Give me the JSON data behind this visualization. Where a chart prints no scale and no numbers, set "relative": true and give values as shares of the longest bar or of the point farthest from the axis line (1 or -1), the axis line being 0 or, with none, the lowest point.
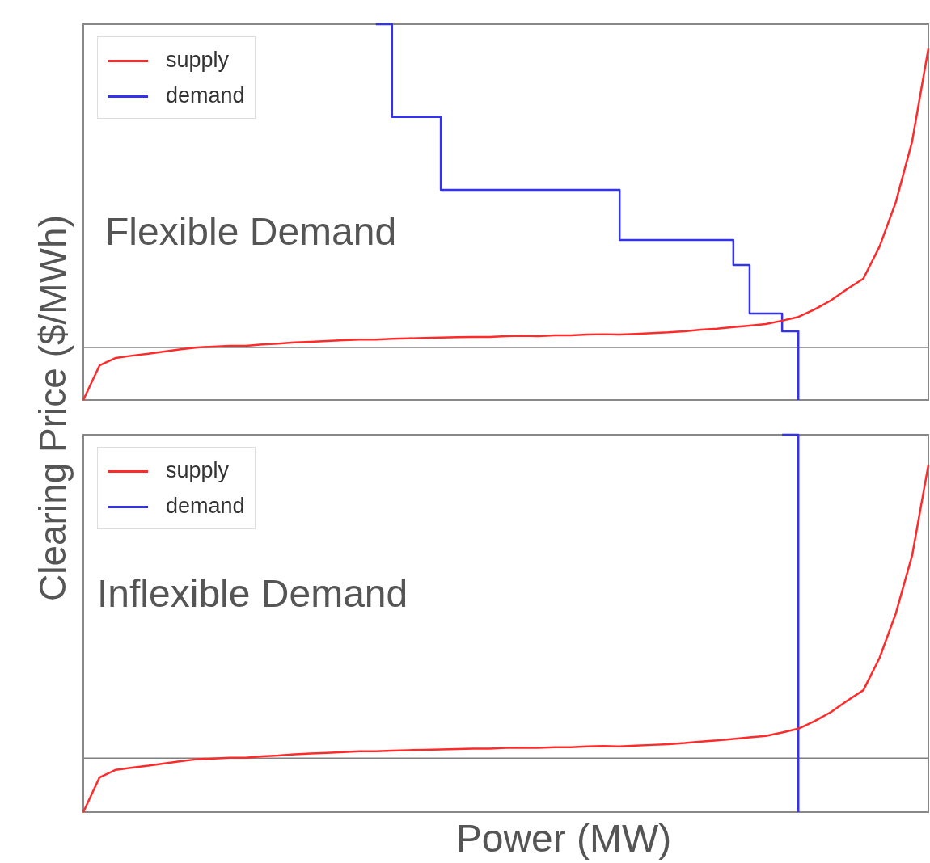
{
  "chart_data": [
    {
      "type": "line",
      "relative": true,
      "annotations": [
        "Flexible Demand"
      ],
      "ylabel": "Clearing Price ($/MWh)",
      "legend": "top left",
      "categories": [
        null,
        null,
        null,
        null,
        null,
        null,
        null,
        null,
        null,
        null,
        null,
        null,
        null,
        null,
        null,
        null,
        null,
        null,
        null,
        null,
        null,
        null,
        null,
        null,
        null,
        null,
        null,
        null,
        null,
        null,
        null,
        null,
        null,
        null,
        null,
        null,
        null,
        null,
        null,
        null,
        null,
        null,
        null,
        null,
        null,
        null,
        null,
        null,
        null,
        null,
        null,
        null,
        null
      ],
      "series": [
        {
          "name": "supply",
          "color": "#ff2a2a",
          "type": "line",
          "values": [
            0,
            0.092,
            0.112,
            0.118,
            0.123,
            0.129,
            0.135,
            0.14,
            0.142,
            0.144,
            0.144,
            0.148,
            0.15,
            0.153,
            0.155,
            0.157,
            0.159,
            0.161,
            0.161,
            0.163,
            0.164,
            0.165,
            0.166,
            0.167,
            0.168,
            0.168,
            0.17,
            0.171,
            0.17,
            0.172,
            0.172,
            0.174,
            0.175,
            0.174,
            0.176,
            0.178,
            0.18,
            0.183,
            0.187,
            0.19,
            0.194,
            0.198,
            0.202,
            0.211,
            0.221,
            0.241,
            0.265,
            0.295,
            0.323,
            0.409,
            0.527,
            0.688,
            0.935
          ]
        },
        {
          "name": "demand",
          "color": "#3333ee",
          "type": "step",
          "values": [
            null,
            null,
            null,
            null,
            null,
            null,
            null,
            null,
            null,
            null,
            null,
            null,
            null,
            null,
            null,
            null,
            null,
            null,
            1,
            0.753,
            0.753,
            0.753,
            0.559,
            0.559,
            0.559,
            0.559,
            0.559,
            0.559,
            0.559,
            0.559,
            0.559,
            0.559,
            0.559,
            0.426,
            0.426,
            0.426,
            0.426,
            0.426,
            0.426,
            0.426,
            0.359,
            0.23,
            0.23,
            0.183,
            0,
            null,
            null,
            null,
            null,
            null,
            null,
            null,
            null
          ]
        }
      ],
      "ref_lines": [
        {
          "axis": "y",
          "value": 0.14,
          "color": "#808080"
        }
      ]
    },
    {
      "type": "line",
      "relative": true,
      "annotations": [
        "Inflexible Demand"
      ],
      "xlabel": "Power (MW)",
      "legend": "top left",
      "categories": [
        null,
        null,
        null,
        null,
        null,
        null,
        null,
        null,
        null,
        null,
        null,
        null,
        null,
        null,
        null,
        null,
        null,
        null,
        null,
        null,
        null,
        null,
        null,
        null,
        null,
        null,
        null,
        null,
        null,
        null,
        null,
        null,
        null,
        null,
        null,
        null,
        null,
        null,
        null,
        null,
        null,
        null,
        null,
        null,
        null,
        null,
        null,
        null,
        null,
        null,
        null,
        null,
        null
      ],
      "series": [
        {
          "name": "supply",
          "color": "#ff2a2a",
          "type": "line",
          "values": [
            0,
            0.092,
            0.112,
            0.118,
            0.123,
            0.129,
            0.135,
            0.14,
            0.142,
            0.144,
            0.144,
            0.148,
            0.15,
            0.153,
            0.155,
            0.157,
            0.159,
            0.161,
            0.161,
            0.163,
            0.164,
            0.165,
            0.166,
            0.167,
            0.168,
            0.168,
            0.17,
            0.171,
            0.17,
            0.172,
            0.172,
            0.174,
            0.175,
            0.174,
            0.176,
            0.178,
            0.18,
            0.183,
            0.187,
            0.19,
            0.194,
            0.198,
            0.202,
            0.211,
            0.221,
            0.241,
            0.265,
            0.295,
            0.323,
            0.409,
            0.527,
            0.68,
            0.92
          ]
        },
        {
          "name": "demand",
          "color": "#3333ee",
          "type": "step",
          "values": [
            null,
            null,
            null,
            null,
            null,
            null,
            null,
            null,
            null,
            null,
            null,
            null,
            null,
            null,
            null,
            null,
            null,
            null,
            null,
            null,
            null,
            null,
            null,
            null,
            null,
            null,
            null,
            null,
            null,
            null,
            null,
            null,
            null,
            null,
            null,
            null,
            null,
            null,
            null,
            null,
            null,
            null,
            null,
            1,
            0,
            null,
            null,
            null,
            null,
            null,
            null,
            null,
            null
          ]
        }
      ],
      "ref_lines": [
        {
          "axis": "y",
          "value": 0.143,
          "color": "#808080"
        }
      ]
    }
  ]
}
